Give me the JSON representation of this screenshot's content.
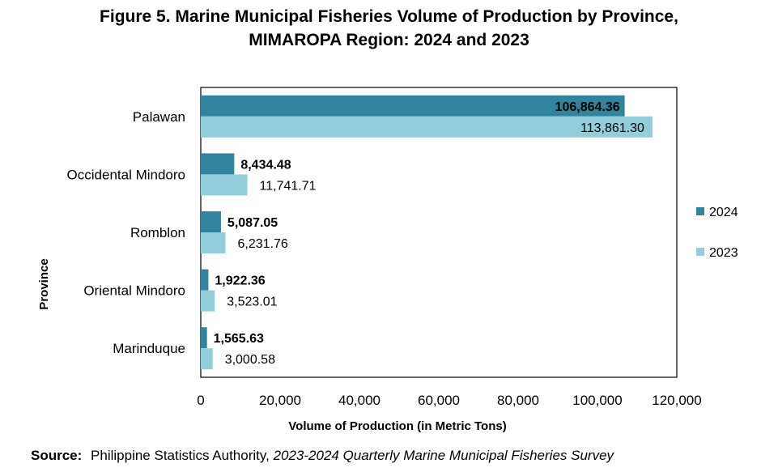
{
  "title": {
    "line1": "Figure 5. Marine Municipal Fisheries Volume of Production by Province,",
    "line2": "MIMAROPA Region: 2024 and 2023"
  },
  "source": {
    "label": "Source:",
    "org": "Philippine Statistics Authority,",
    "survey": "2023-2024 Quarterly Marine Municipal Fisheries Survey"
  },
  "colors": {
    "series_2024": "#31849b",
    "series_2023": "#92cddc"
  },
  "chart_data": {
    "type": "bar",
    "orientation": "horizontal",
    "xlabel": "Volume of Production (in Metric Tons)",
    "ylabel": "Province",
    "xlim": [
      0,
      120000
    ],
    "xticks": [
      "0",
      "20,000",
      "40,000",
      "60,000",
      "80,000",
      "100,000",
      "120,000"
    ],
    "grid": false,
    "legend_position": "right",
    "categories": [
      "Palawan",
      "Occidental Mindoro",
      "Romblon",
      "Oriental Mindoro",
      "Marinduque"
    ],
    "series": [
      {
        "name": "2024",
        "values": [
          106864.36,
          8434.48,
          5087.05,
          1922.36,
          1565.63
        ],
        "labels": [
          "106,864.36",
          "8,434.48",
          "5,087.05",
          "1,922.36",
          "1,565.63"
        ]
      },
      {
        "name": "2023",
        "values": [
          113861.3,
          11741.71,
          6231.76,
          3523.01,
          3000.58
        ],
        "labels": [
          "113,861.30",
          "11,741.71",
          "6,231.76",
          "3,523.01",
          "3,000.58"
        ]
      }
    ]
  }
}
